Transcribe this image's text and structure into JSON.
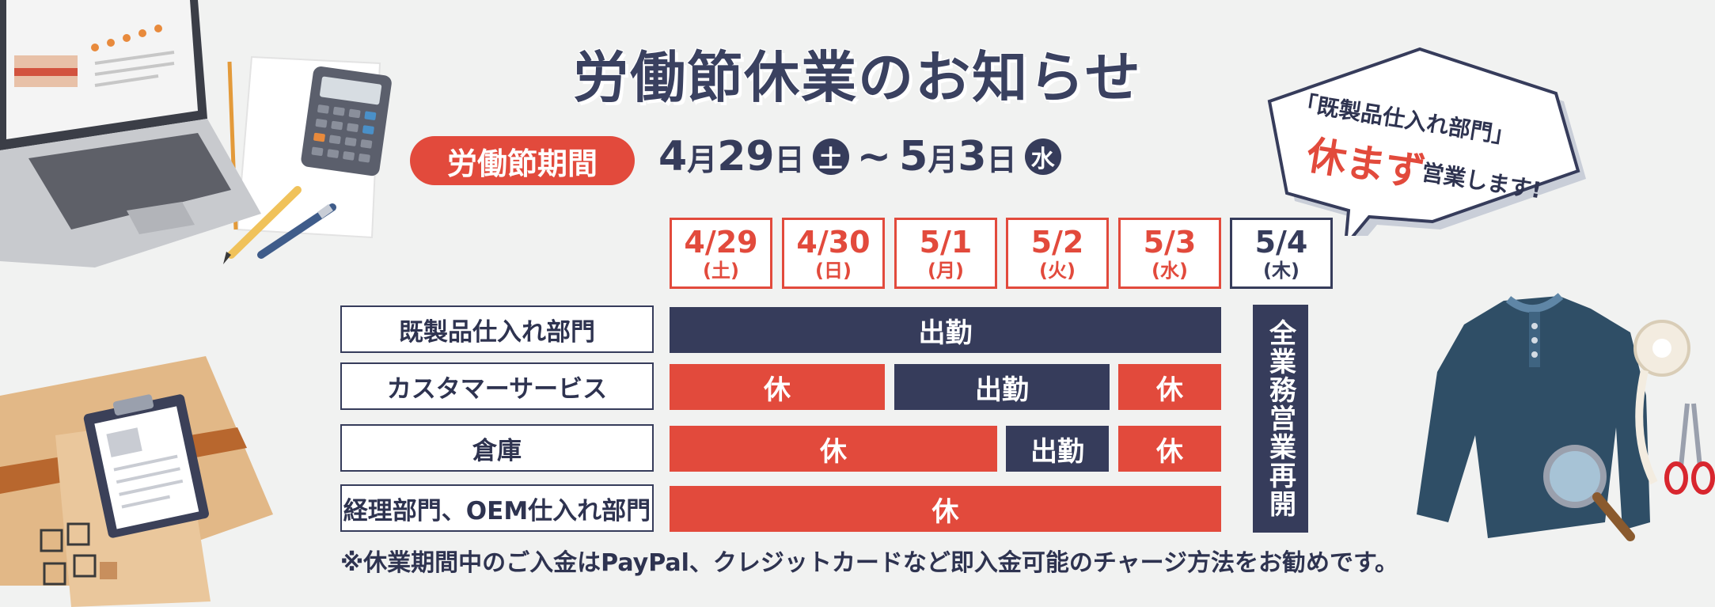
{
  "title": "労働節休業のお知らせ",
  "period": {
    "label": "労働節期間",
    "start_m": "4",
    "start_d": "29",
    "start_wd": "土",
    "end_m": "5",
    "end_d": "3",
    "end_wd": "水",
    "month_char": "月",
    "day_char": "日",
    "tilde": "~"
  },
  "bubble": {
    "line1": "「既製品仕入れ部門」",
    "emph": "休まず",
    "line2": "営業します!"
  },
  "dates": [
    {
      "date": "4/29",
      "weekday": "(土)"
    },
    {
      "date": "4/30",
      "weekday": "(日)"
    },
    {
      "date": "5/1",
      "weekday": "(月)"
    },
    {
      "date": "5/2",
      "weekday": "(火)"
    },
    {
      "date": "5/3",
      "weekday": "(水)"
    },
    {
      "date": "5/4",
      "weekday": "(木)"
    }
  ],
  "departments": [
    "既製品仕入れ部門",
    "カスタマーサービス",
    "倉庫",
    "経理部門、OEM仕入れ部門"
  ],
  "status": {
    "work": "出勤",
    "off": "休"
  },
  "resume": "全業務営業再開",
  "note": "※休業期間中のご入金はPayPal、クレジットカードなど即入金可能のチャージ方法をお勧めです。",
  "colors": {
    "accent_red": "#e24a3c",
    "navy": "#363c5b",
    "background": "#f1f2f1"
  },
  "illustrations": [
    "laptop-icon",
    "calculator-icon",
    "pencil-icon",
    "pen-icon",
    "cardboard-box-icon",
    "clipboard-icon",
    "sweater-icon",
    "tape-measure-icon",
    "scissors-icon",
    "magnifier-icon"
  ]
}
